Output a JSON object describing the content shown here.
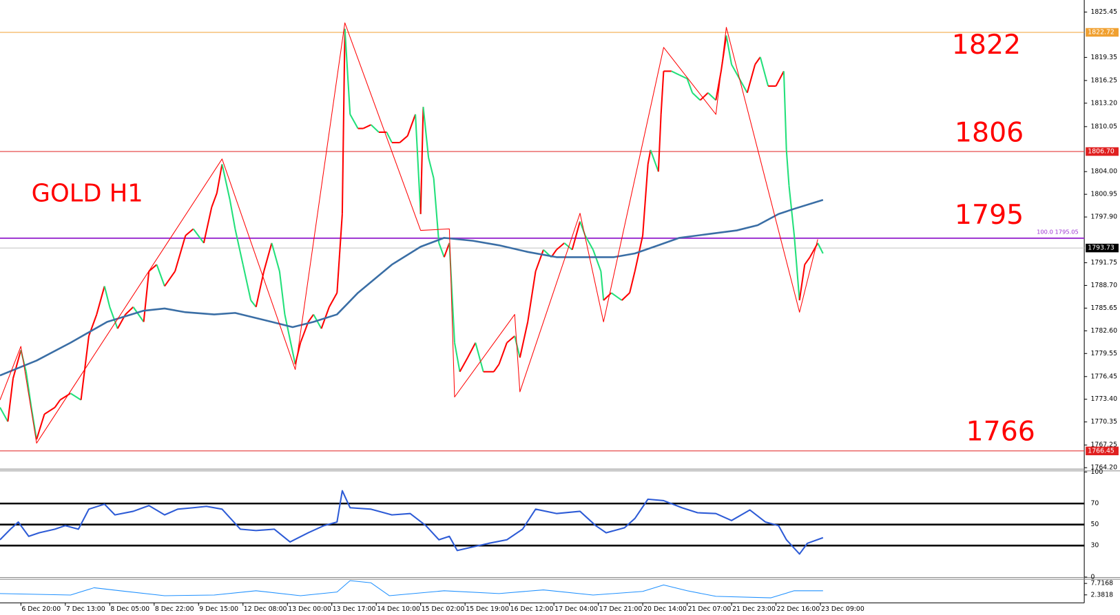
{
  "chart_data": {
    "type": "line",
    "title": "GOLD H1",
    "xlim": [
      0,
      415
    ],
    "xticks": [
      {
        "value": 8,
        "label": "6 Dec 20:00"
      },
      {
        "value": 25,
        "label": "7 Dec 13:00"
      },
      {
        "value": 42,
        "label": "8 Dec 05:00"
      },
      {
        "value": 59,
        "label": "8 Dec 22:00"
      },
      {
        "value": 76,
        "label": "9 Dec 15:00"
      },
      {
        "value": 93,
        "label": "12 Dec 08:00"
      },
      {
        "value": 110,
        "label": "13 Dec 00:00"
      },
      {
        "value": 127,
        "label": "13 Dec 17:00"
      },
      {
        "value": 144,
        "label": "14 Dec 10:00"
      },
      {
        "value": 161,
        "label": "15 Dec 02:00"
      },
      {
        "value": 178,
        "label": "15 Dec 19:00"
      },
      {
        "value": 195,
        "label": "16 Dec 12:00"
      },
      {
        "value": 212,
        "label": "17 Dec 04:00"
      },
      {
        "value": 229,
        "label": "17 Dec 21:00"
      },
      {
        "value": 246,
        "label": "20 Dec 14:00"
      },
      {
        "value": 263,
        "label": "21 Dec 07:00"
      },
      {
        "value": 280,
        "label": "21 Dec 23:00"
      },
      {
        "value": 297,
        "label": "22 Dec 16:00"
      },
      {
        "value": 314,
        "label": "23 Dec 09:00"
      }
    ],
    "ylim": [
      1764.2,
      1827.07
    ],
    "yticks": [
      1825.45,
      1819.35,
      1816.25,
      {
        "value": 1813.2,
        "label": "1813.20"
      },
      1810.05,
      {
        "value": 1804,
        "label": "1804.00"
      },
      1800.95,
      {
        "value": 1797.9,
        "label": "1797.90"
      },
      1791.75,
      {
        "value": 1788.7,
        "label": "1788.70"
      },
      1785.65,
      {
        "value": 1782.6,
        "label": "1782.60"
      },
      1779.55,
      1776.45,
      {
        "value": 1773.4,
        "label": "1773.40"
      },
      1770.35,
      1767.25,
      {
        "value": 1764.2,
        "label": "1764.20"
      }
    ],
    "series": [
      {
        "style": "candles",
        "up_color": "#ff0000",
        "down_color": "#22e07a",
        "x": [
          0,
          3,
          5,
          8,
          10,
          12,
          14,
          17,
          21,
          23,
          27,
          31,
          34,
          37,
          40,
          42,
          45,
          48,
          51,
          55,
          57,
          60,
          63,
          67,
          71,
          74,
          78,
          81,
          83,
          85,
          88,
          90,
          93,
          96,
          98,
          101,
          104,
          107,
          109,
          113,
          115,
          118,
          120,
          123,
          126,
          129,
          131,
          132,
          134,
          137,
          139,
          142,
          145,
          148,
          150,
          153,
          156,
          159,
          161,
          162,
          164,
          166,
          168,
          170,
          172,
          174,
          176,
          179,
          182,
          185,
          189,
          191,
          194,
          197,
          199,
          202,
          205,
          208,
          211,
          213,
          216,
          219,
          222,
          224,
          227,
          230,
          231,
          234,
          238,
          241,
          243,
          246,
          248,
          249,
          252,
          253,
          254,
          257,
          260,
          263,
          265,
          268,
          271,
          274,
          276,
          278,
          280,
          283,
          286,
          289,
          291,
          294,
          297,
          300,
          301,
          302,
          304,
          306,
          308,
          310,
          313,
          315
        ],
        "values": [
          1772.3,
          1770.4,
          1776.2,
          1780.0,
          1777.1,
          1772.3,
          1768.0,
          1771.4,
          1772.3,
          1773.3,
          1774.2,
          1773.3,
          1781.9,
          1784.8,
          1788.6,
          1785.8,
          1782.9,
          1784.8,
          1785.8,
          1783.8,
          1790.6,
          1791.5,
          1788.6,
          1790.6,
          1795.4,
          1796.3,
          1794.4,
          1799.2,
          1801.1,
          1805.0,
          1800.2,
          1796.3,
          1791.5,
          1786.7,
          1785.8,
          1790.6,
          1794.4,
          1790.6,
          1784.8,
          1778.1,
          1781.0,
          1783.8,
          1784.8,
          1782.9,
          1785.8,
          1787.7,
          1798.3,
          1823.2,
          1811.7,
          1809.8,
          1809.8,
          1810.3,
          1809.3,
          1809.3,
          1807.9,
          1807.9,
          1808.8,
          1811.7,
          1798.3,
          1812.7,
          1805.9,
          1803.1,
          1794.4,
          1792.5,
          1794.4,
          1781.0,
          1777.1,
          1779.0,
          1781.0,
          1777.1,
          1777.1,
          1778.1,
          1781.0,
          1781.9,
          1779.0,
          1783.8,
          1790.6,
          1793.5,
          1792.5,
          1793.5,
          1794.4,
          1793.5,
          1797.3,
          1795.4,
          1793.5,
          1790.6,
          1786.7,
          1787.7,
          1786.7,
          1787.7,
          1790.6,
          1795.4,
          1805.0,
          1806.9,
          1804.0,
          1811.7,
          1817.5,
          1817.5,
          1817.0,
          1816.5,
          1814.6,
          1813.6,
          1814.6,
          1813.6,
          1817.5,
          1822.3,
          1818.4,
          1816.5,
          1814.6,
          1818.4,
          1819.4,
          1815.5,
          1815.5,
          1817.5,
          1806.9,
          1802.1,
          1795.4,
          1786.7,
          1791.5,
          1792.5,
          1794.4,
          1793.0
        ]
      },
      {
        "style": "line",
        "color": "#3a6ea5",
        "width": 2.5,
        "x": [
          0,
          14,
          27,
          41,
          55,
          63,
          71,
          82,
          90,
          104,
          112,
          120,
          129,
          137,
          150,
          161,
          170,
          181,
          191,
          202,
          213,
          224,
          235,
          243,
          252,
          260,
          271,
          282,
          290,
          298,
          304,
          315
        ],
        "values": [
          1776.6,
          1778.6,
          1781.0,
          1783.8,
          1785.3,
          1785.6,
          1785.1,
          1784.8,
          1785.0,
          1783.8,
          1783.1,
          1783.8,
          1784.8,
          1787.7,
          1791.5,
          1793.9,
          1795.1,
          1794.7,
          1794.1,
          1793.2,
          1792.5,
          1792.5,
          1792.5,
          1793.0,
          1794.1,
          1795.1,
          1795.6,
          1796.1,
          1796.8,
          1798.3,
          1799.0,
          1800.2
        ]
      },
      {
        "style": "line",
        "color": "#ff0000",
        "width": 1,
        "x": [
          0,
          8,
          14,
          85,
          113,
          132,
          161,
          172,
          174,
          197,
          199,
          222,
          231,
          254,
          274,
          278,
          306,
          313
        ],
        "values": [
          1773.3,
          1780.5,
          1767.5,
          1805.7,
          1777.4,
          1824.0,
          1796.1,
          1796.3,
          1773.7,
          1784.8,
          1774.4,
          1798.4,
          1783.8,
          1820.7,
          1811.7,
          1823.4,
          1785.1,
          1794.9
        ]
      }
    ],
    "levels": [
      {
        "value": 1822.72,
        "label": "1822.72",
        "color": "#f0a030"
      },
      {
        "value": 1806.7,
        "label": "1806.70",
        "color": "#e02020"
      },
      {
        "value": 1795.05,
        "label": "100.0  1795.05",
        "color": "#9b30d0"
      },
      {
        "value": 1793.73,
        "label": "1793.73",
        "color": "#c0c0c0"
      },
      {
        "value": 1766.45,
        "label": "1766.45",
        "color": "#e02020"
      }
    ],
    "annotations": [
      "1822",
      "1806",
      "1795",
      "1766"
    ],
    "rsi": {
      "ylim": [
        0,
        100
      ],
      "yticks": [
        100,
        70,
        50,
        30,
        0
      ],
      "color": "#2d5bd6",
      "x": [
        0,
        4,
        7,
        11,
        15,
        21,
        25,
        30,
        34,
        40,
        44,
        51,
        57,
        63,
        68,
        74,
        79,
        85,
        92,
        98,
        105,
        111,
        118,
        124,
        129,
        131,
        134,
        142,
        150,
        157,
        163,
        168,
        172,
        175,
        181,
        187,
        194,
        200,
        205,
        213,
        222,
        228,
        232,
        239,
        243,
        248,
        254,
        261,
        267,
        274,
        280,
        287,
        293,
        298,
        301,
        306,
        309,
        315
      ],
      "values": [
        35.5,
        45.6,
        52.4,
        38.8,
        42.2,
        45.6,
        49.0,
        45.6,
        64.6,
        69.4,
        59.2,
        62.6,
        68.0,
        59.2,
        64.6,
        66.0,
        67.3,
        64.6,
        45.6,
        44.3,
        45.6,
        33.4,
        42.2,
        49.0,
        52.4,
        82.2,
        66.0,
        64.6,
        59.2,
        60.5,
        49.0,
        35.5,
        38.8,
        25.3,
        28.7,
        32.1,
        35.5,
        45.6,
        64.6,
        60.5,
        62.6,
        49.0,
        42.2,
        46.9,
        55.8,
        74.1,
        72.7,
        66.0,
        61.2,
        60.5,
        53.8,
        63.9,
        52.4,
        49.0,
        35.5,
        22.0,
        32.1,
        37.5
      ]
    },
    "atr": {
      "ylim": [
        0,
        9.33
      ],
      "yticks": [
        7.7168,
        2.3818
      ],
      "color": "#1e90ff",
      "x": [
        0,
        27,
        36,
        46,
        63,
        82,
        98,
        115,
        129,
        134,
        142,
        149,
        170,
        191,
        208,
        227,
        246,
        254,
        263,
        274,
        295,
        304,
        315
      ],
      "values": [
        3.0,
        2.3,
        5.7,
        4.3,
        2.0,
        2.3,
        4.3,
        2.0,
        3.7,
        9.0,
        8.0,
        2.0,
        4.3,
        3.0,
        4.7,
        2.3,
        4.0,
        7.0,
        4.3,
        1.7,
        1.0,
        4.3,
        4.3
      ]
    }
  }
}
